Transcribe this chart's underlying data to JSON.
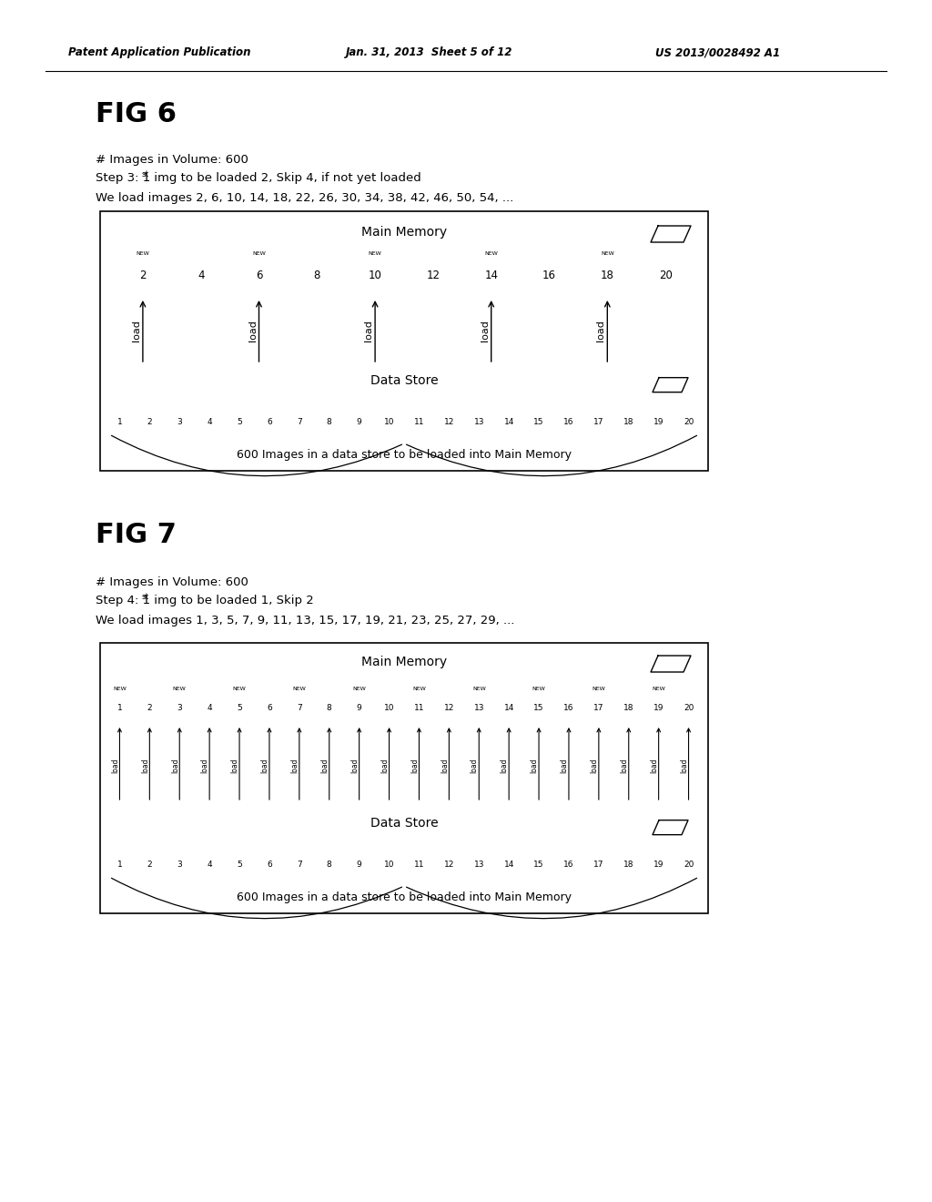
{
  "fig6_title": "FIG 6",
  "fig6_line1": "# Images in Volume: 600",
  "fig6_line2_pre": "Step 3: 1",
  "fig6_line2_sup": "st",
  "fig6_line2_post": " img to be loaded 2, Skip 4, if not yet loaded",
  "fig6_line3": "We load images 2, 6, 10, 14, 18, 22, 26, 30, 34, 38, 42, 46, 50, 54, ...",
  "fig6_new_items": [
    2,
    6,
    10,
    14,
    18
  ],
  "fig6_load_items": [
    2,
    6,
    10,
    14,
    18
  ],
  "fig6_mem_items": [
    2,
    4,
    6,
    8,
    10,
    12,
    14,
    16,
    18,
    20
  ],
  "fig7_title": "FIG 7",
  "fig7_line1": "# Images in Volume: 600",
  "fig7_line2_pre": "Step 4: 1",
  "fig7_line2_sup": "st",
  "fig7_line2_post": " img to be loaded 1, Skip 2",
  "fig7_line3": "We load images 1, 3, 5, 7, 9, 11, 13, 15, 17, 19, 21, 23, 25, 27, 29, ...",
  "fig7_new_items": [
    1,
    3,
    5,
    7,
    9,
    11,
    13,
    15,
    17,
    19
  ],
  "fig7_load_items": [
    1,
    2,
    3,
    4,
    5,
    6,
    7,
    8,
    9,
    10,
    11,
    12,
    13,
    14,
    15,
    16,
    17,
    18,
    19,
    20
  ],
  "fig7_mem_items": [
    1,
    2,
    3,
    4,
    5,
    6,
    7,
    8,
    9,
    10,
    11,
    12,
    13,
    14,
    15,
    16,
    17,
    18,
    19,
    20
  ],
  "all_items": [
    1,
    2,
    3,
    4,
    5,
    6,
    7,
    8,
    9,
    10,
    11,
    12,
    13,
    14,
    15,
    16,
    17,
    18,
    19,
    20
  ],
  "background_color": "#ffffff"
}
